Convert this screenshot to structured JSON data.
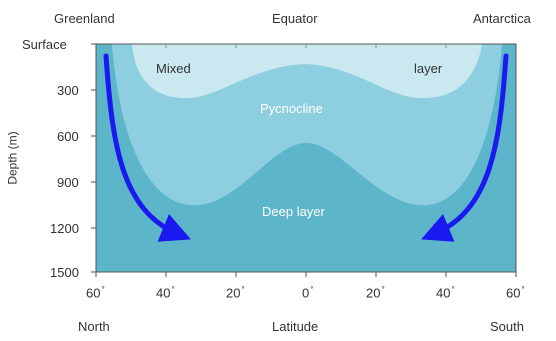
{
  "header": {
    "left": "Greenland",
    "center": "Equator",
    "right": "Antarctica"
  },
  "y_axis": {
    "label": "Depth (m)",
    "ticks": [
      "Surface",
      "300",
      "600",
      "900",
      "1200",
      "1500"
    ]
  },
  "x_axis": {
    "ticks": [
      "60",
      "40",
      "20",
      "0",
      "20",
      "40",
      "60"
    ],
    "degree_symbol": "°",
    "left_label": "North",
    "center_label": "Latitude",
    "right_label": "South"
  },
  "regions": {
    "mixed_left": "Mixed",
    "mixed_right": "layer",
    "pycnocline": "Pycnocline",
    "deep": "Deep layer"
  },
  "colors": {
    "mixed_layer": "#c9e8f0",
    "pycnocline": "#8dcfe0",
    "deep_layer": "#5db5ca",
    "outer_band": "#6bbdd0",
    "arrows": "#1a1af0",
    "frame": "#555555"
  },
  "icons": {
    "sinking_arrows": "downwelling-arrow-icon"
  }
}
